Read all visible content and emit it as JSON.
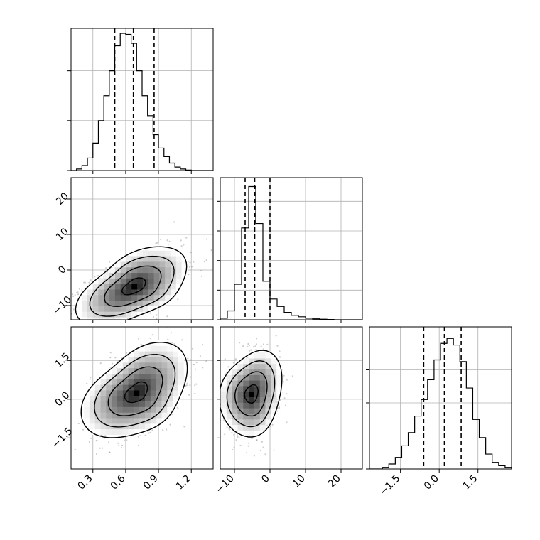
{
  "chart_data": {
    "type": "corner",
    "title": "",
    "parameters": [
      {
        "label": "",
        "range": [
          0.1,
          1.4
        ],
        "ticks": [
          0.3,
          0.6,
          0.9,
          1.2
        ],
        "tick_labels": [
          "0.3",
          "0.6",
          "0.9",
          "1.2"
        ],
        "quantiles": [
          0.5,
          0.67,
          0.86
        ],
        "histogram": {
          "bin_edges": [
            0.1,
            0.15,
            0.2,
            0.25,
            0.3,
            0.35,
            0.4,
            0.45,
            0.5,
            0.55,
            0.6,
            0.65,
            0.7,
            0.75,
            0.8,
            0.85,
            0.9,
            0.95,
            1.0,
            1.05,
            1.1,
            1.15,
            1.2,
            1.25,
            1.3,
            1.35,
            1.4
          ],
          "counts": [
            0,
            3,
            10,
            25,
            55,
            100,
            150,
            200,
            250,
            275,
            273,
            255,
            200,
            150,
            110,
            72,
            45,
            28,
            15,
            7,
            3,
            1,
            0,
            0,
            0,
            0
          ],
          "ylim": [
            0,
            285
          ],
          "yticks": [
            0,
            100,
            200
          ]
        }
      },
      {
        "label": "",
        "range": [
          -14,
          26
        ],
        "ticks": [
          -10,
          0,
          10,
          20
        ],
        "tick_labels": [
          "−10",
          "0",
          "10",
          "20"
        ],
        "quantiles": [
          -7,
          -4.3,
          0
        ],
        "histogram": {
          "bin_edges": [
            -14,
            -12,
            -10,
            -8,
            -6,
            -4,
            -2,
            0,
            2,
            4,
            6,
            8,
            10,
            12,
            14,
            16,
            18,
            20,
            22,
            24,
            26
          ],
          "counts": [
            5,
            30,
            120,
            310,
            450,
            325,
            130,
            70,
            45,
            25,
            15,
            10,
            5,
            3,
            2,
            1,
            0,
            0,
            0,
            0
          ],
          "ylim": [
            0,
            480
          ],
          "yticks": [
            0,
            100,
            200,
            300,
            400
          ]
        }
      },
      {
        "label": "",
        "range": [
          -2.7,
          2.8
        ],
        "ticks": [
          -1.5,
          0.0,
          1.5
        ],
        "tick_labels": [
          "−1.5",
          "0.0",
          "1.5"
        ],
        "quantiles": [
          -0.6,
          0.2,
          0.85
        ],
        "histogram": {
          "bin_edges": [
            -2.7,
            -2.45,
            -2.2,
            -1.95,
            -1.7,
            -1.45,
            -1.2,
            -0.95,
            -0.7,
            -0.45,
            -0.2,
            0.05,
            0.3,
            0.55,
            0.8,
            1.05,
            1.3,
            1.55,
            1.8,
            2.05,
            2.3,
            2.55,
            2.8
          ],
          "counts": [
            0,
            0,
            5,
            15,
            35,
            70,
            110,
            160,
            210,
            270,
            330,
            380,
            395,
            375,
            325,
            245,
            150,
            95,
            45,
            20,
            10,
            5
          ],
          "ylim": [
            0,
            430
          ],
          "yticks": [
            0,
            100,
            200,
            300
          ]
        }
      }
    ],
    "joint": [
      {
        "x_param": 0,
        "y_param": 1,
        "center": [
          0.68,
          -4.6
        ],
        "sigma": [
          0.22,
          4.8
        ],
        "corr": 0.55,
        "n_points": 1300,
        "contour_levels": [
          0.5,
          1.18,
          1.75,
          2.3
        ]
      },
      {
        "x_param": 0,
        "y_param": 2,
        "center": [
          0.7,
          0.25
        ],
        "sigma": [
          0.21,
          0.8
        ],
        "corr": 0.45,
        "n_points": 1300,
        "contour_levels": [
          0.5,
          1.18,
          1.75,
          2.3
        ]
      },
      {
        "x_param": 1,
        "y_param": 2,
        "center": [
          -5.2,
          0.2
        ],
        "sigma": [
          3.8,
          0.72
        ],
        "corr": 0.2,
        "n_points": 1300,
        "contour_levels": [
          0.5,
          1.18,
          1.75,
          2.3
        ]
      }
    ],
    "grid": true,
    "colors": {
      "axes": "#000000",
      "grid": "#b0b0b0",
      "points": "#909090",
      "density_dark": "#000000",
      "density_light": "#ffffff"
    }
  }
}
